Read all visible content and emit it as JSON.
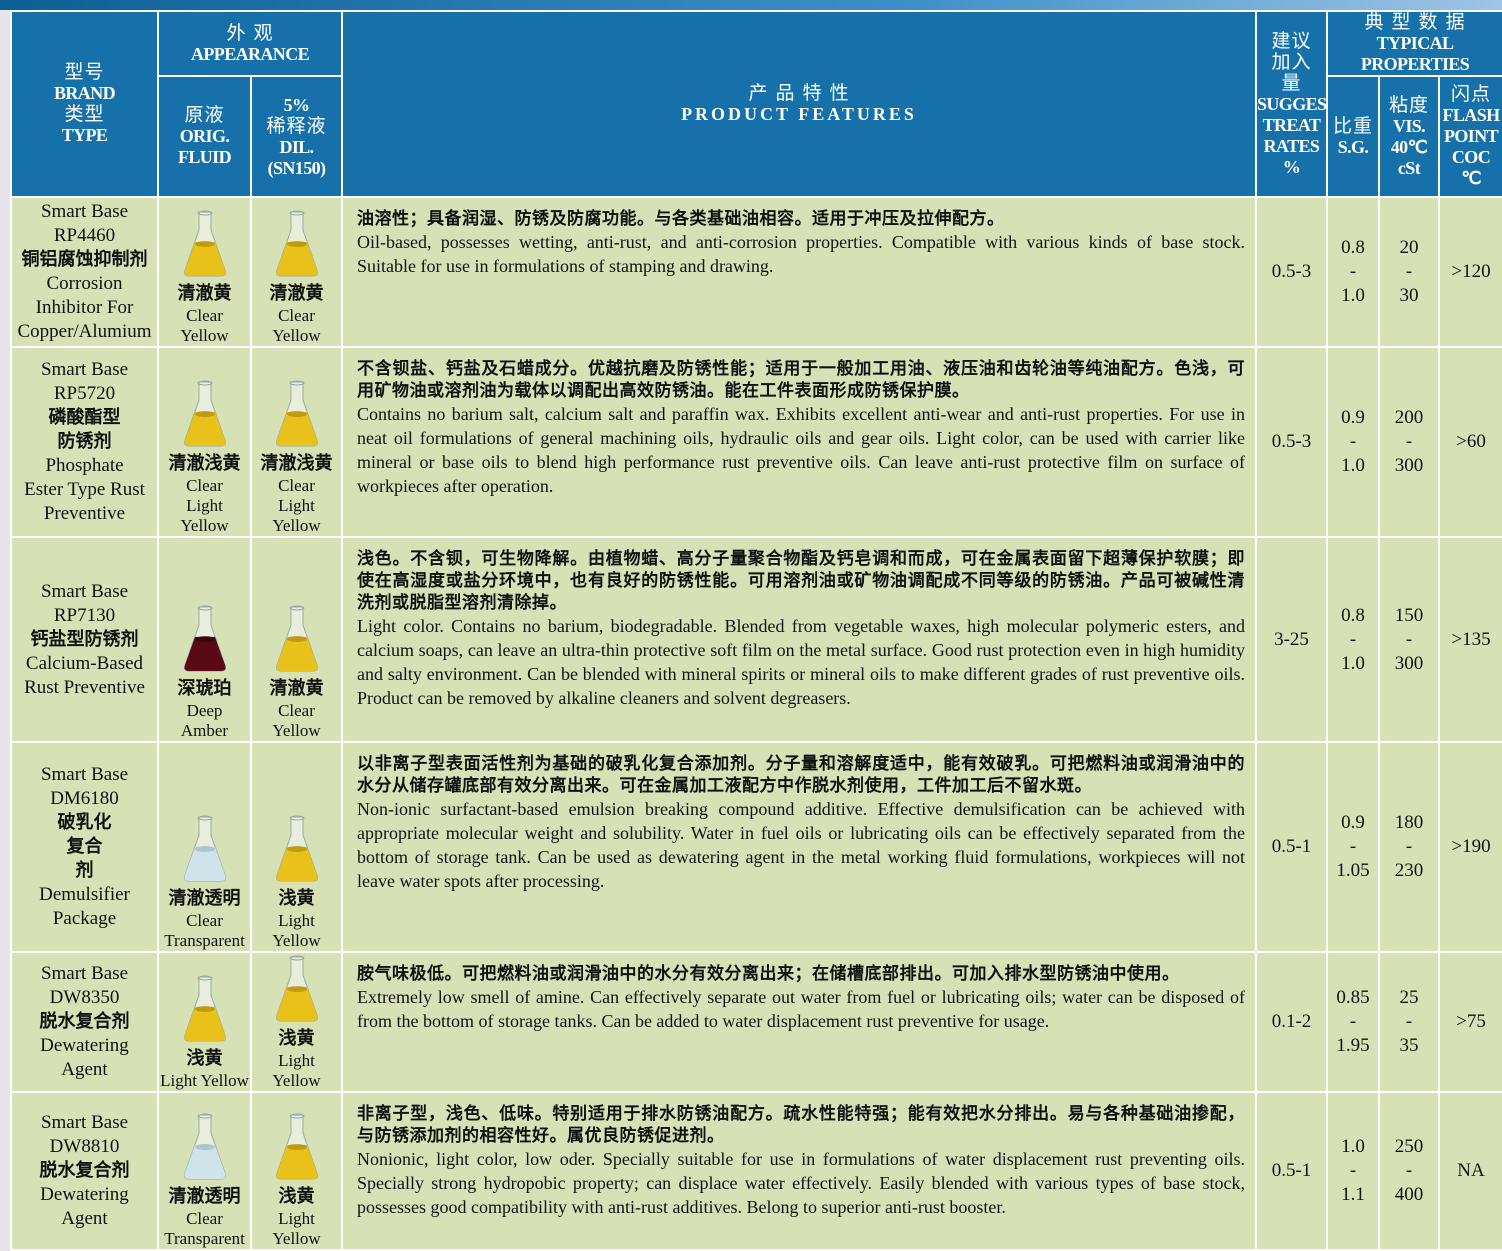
{
  "header": {
    "brand": [
      "型号",
      "BRAND",
      "类型",
      "TYPE"
    ],
    "appearance": [
      "外 观",
      "APPEARANCE"
    ],
    "orig": [
      "原液",
      "ORIG.",
      "FLUID"
    ],
    "dil": [
      "5%",
      "稀释液",
      "DIL.",
      "(SN150)"
    ],
    "features": [
      "产 品 特 性",
      "PRODUCT FEATURES"
    ],
    "treat": [
      "建议",
      "加入",
      "量",
      "SUGGESTED",
      "TREAT",
      "RATES",
      "%"
    ],
    "typical": [
      "典 型 数 据",
      "TYPICAL PROPERTIES"
    ],
    "sg": [
      "比重",
      "S.G."
    ],
    "vis": [
      "粘度",
      "VIS.",
      "40℃",
      "cSt"
    ],
    "flash": [
      "闪点",
      "FLASH",
      "POINT",
      "COC",
      "℃"
    ]
  },
  "rows": [
    {
      "brand": [
        "Smart Base",
        "RP4460",
        "铜铝腐蚀抑制剂",
        "Corrosion",
        "Inhibitor For",
        "Copper/Alumium"
      ],
      "orig": [
        "清澈黄",
        "Clear",
        "Yellow"
      ],
      "dil": [
        "清澈黄",
        "Clear",
        "Yellow"
      ],
      "features_cn": "油溶性；具备润湿、防锈及防腐功能。与各类基础油相容。适用于冲压及拉伸配方。",
      "features_en": "Oil-based, possesses wetting, anti-rust, and anti-corrosion properties. Compatible with various kinds of base stock. Suitable for use in formulations of stamping and drawing.",
      "treat": "0.5-3",
      "sg": [
        "0.8",
        "-",
        "1.0"
      ],
      "vis": [
        "20",
        "-",
        "30"
      ],
      "flash": ">120"
    },
    {
      "brand": [
        "Smart Base",
        "RP5720",
        "磷酸酯型",
        "防锈剂",
        "Phosphate",
        "Ester Type Rust",
        "Preventive"
      ],
      "orig": [
        "清澈浅黄",
        "Clear",
        "Light",
        "Yellow"
      ],
      "dil": [
        "清澈浅黄",
        "Clear",
        "Light",
        "Yellow"
      ],
      "features_cn": "不含钡盐、钙盐及石蜡成分。优越抗磨及防锈性能；适用于一般加工用油、液压油和齿轮油等纯油配方。色浅，可用矿物油或溶剂油为载体以调配出高效防锈油。能在工件表面形成防锈保护膜。",
      "features_en": "Contains no barium salt, calcium salt and paraffin wax. Exhibits excellent anti-wear and anti-rust properties. For use in neat oil formulations of general machining oils, hydraulic oils and gear oils. Light color, can be used with carrier like mineral or base oils to blend high performance rust preventive oils. Can leave anti-rust protective film on surface of workpieces after operation.",
      "treat": "0.5-3",
      "sg": [
        "0.9",
        "-",
        "1.0"
      ],
      "vis": [
        "200",
        "-",
        "300"
      ],
      "flash": ">60"
    },
    {
      "brand": [
        "Smart Base",
        "RP7130",
        "钙盐型防锈剂",
        "Calcium-Based",
        "Rust Preventive"
      ],
      "orig": [
        "深琥珀",
        "Deep",
        "Amber"
      ],
      "dil": [
        "清澈黄",
        "Clear",
        "Yellow"
      ],
      "features_cn": "浅色。不含钡，可生物降解。由植物蜡、高分子量聚合物酯及钙皂调和而成，可在金属表面留下超薄保护软膜；即使在高湿度或盐分环境中，也有良好的防锈性能。可用溶剂油或矿物油调配成不同等级的防锈油。产品可被碱性清洗剂或脱脂型溶剂清除掉。",
      "features_en": "Light color. Contains no barium, biodegradable. Blended from vegetable waxes, high molecular polymeric esters, and calcium soaps, can leave an ultra-thin protective soft film on the metal surface. Good rust protection even in high humidity and salty environment. Can be blended with mineral spirits or mineral oils to make different grades of rust preventive oils. Product can be removed by alkaline cleaners and solvent degreasers.",
      "treat": "3-25",
      "sg": [
        "0.8",
        "-",
        "1.0"
      ],
      "vis": [
        "150",
        "-",
        "300"
      ],
      "flash": ">135"
    },
    {
      "brand": [
        "Smart Base",
        "DM6180",
        "破乳化",
        "复合",
        "剂",
        "Demulsifier",
        "Package"
      ],
      "orig": [
        "清澈透明",
        "Clear",
        "Transparent"
      ],
      "dil": [
        "浅黄",
        "Light",
        "Yellow"
      ],
      "features_cn": "以非离子型表面活性剂为基础的破乳化复合添加剂。分子量和溶解度适中，能有效破乳。可把燃料油或润滑油中的水分从储存罐底部有效分离出来。可在金属加工液配方中作脱水剂使用，工件加工后不留水斑。",
      "features_en": "Non-ionic surfactant-based emulsion breaking compound additive. Effective demulsification can be achieved with appropriate molecular weight and solubility. Water in fuel oils or lubricating oils can be effectively separated from the bottom of storage tank. Can be used as dewatering agent in the metal working fluid formulations, workpieces will not leave water spots after processing.",
      "treat": "0.5-1",
      "sg": [
        "0.9",
        "-",
        "1.05"
      ],
      "vis": [
        "180",
        "-",
        "230"
      ],
      "flash": ">190"
    },
    {
      "brand": [
        "Smart Base",
        "DW8350",
        "脱水复合剂",
        "Dewatering",
        "Agent"
      ],
      "orig": [
        "浅黄",
        "Light Yellow"
      ],
      "dil": [
        "浅黄",
        "Light",
        "Yellow"
      ],
      "features_cn": "胺气味极低。可把燃料油或润滑油中的水分有效分离出来；在储槽底部排出。可加入排水型防锈油中使用。",
      "features_en": "Extremely low smell of amine. Can effectively separate out water from fuel or lubricating oils; water can be disposed of from the bottom of storage tanks. Can be added to water displacement rust preventive for usage.",
      "treat": "0.1-2",
      "sg": [
        "0.85",
        "-",
        "1.95"
      ],
      "vis": [
        "25",
        "-",
        "35"
      ],
      "flash": ">75"
    },
    {
      "brand": [
        "Smart Base",
        "DW8810",
        "脱水复合剂",
        "Dewatering",
        "Agent"
      ],
      "orig": [
        "清澈透明",
        "Clear",
        "Transparent"
      ],
      "dil": [
        "浅黄",
        "Light",
        "Yellow"
      ],
      "features_cn": "非离子型，浅色、低味。特别适用于排水防锈油配方。疏水性能特强；能有效把水分排出。易与各种基础油掺配，与防锈添加剂的相容性好。属优良防锈促进剂。",
      "features_en": "Nonionic, light color, low oder. Specially suitable for use in formulations of water displacement rust preventing oils. Specially strong hydropobic property; can displace water effectively. Easily blended with various types of base stock, possesses good compatibility with anti-rust additives. Belong to superior anti-rust booster.",
      "treat": "0.5-1",
      "sg": [
        "1.0",
        "-",
        "1.1"
      ],
      "vis": [
        "250",
        "-",
        "400"
      ],
      "flash": "NA"
    }
  ]
}
